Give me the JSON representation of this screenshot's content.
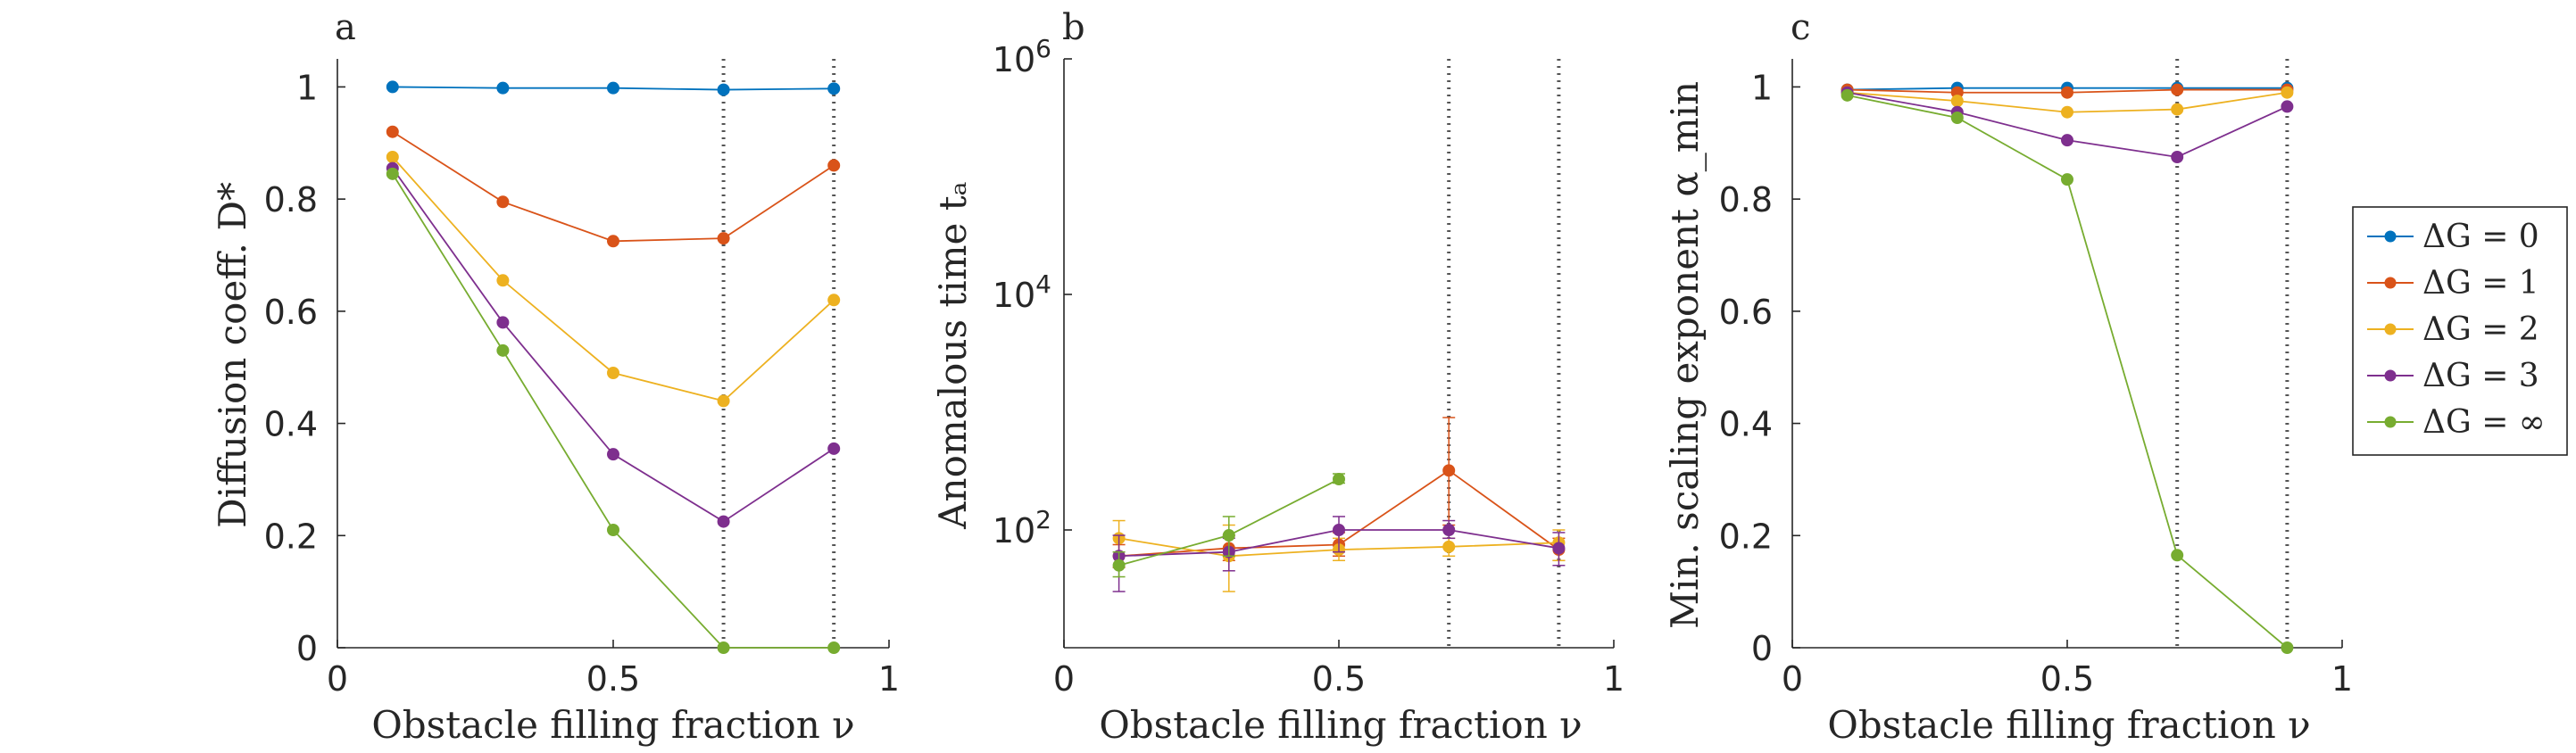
{
  "colors": {
    "dG0": "#0072BD",
    "dG1": "#D95319",
    "dG2": "#EDB120",
    "dG3": "#7E2F8E",
    "dGinf": "#77AC30",
    "axis": "#262626",
    "vline": "#555555"
  },
  "legend": [
    {
      "key": "dG0",
      "label": "ΔG = 0"
    },
    {
      "key": "dG1",
      "label": "ΔG = 1"
    },
    {
      "key": "dG2",
      "label": "ΔG = 2"
    },
    {
      "key": "dG3",
      "label": "ΔG = 3"
    },
    {
      "key": "dGinf",
      "label": "ΔG = ∞"
    }
  ],
  "chart_data": [
    {
      "type": "line",
      "panel": "a",
      "xlabel": "Obstacle filling fraction ν",
      "ylabel": "Diffusion coeff. D*",
      "xlim": [
        0,
        1
      ],
      "ylim": [
        0,
        1.05
      ],
      "xticks": [
        0,
        0.5,
        1
      ],
      "xticklabels": [
        "0",
        "0.5",
        "1"
      ],
      "yscale": "linear",
      "yticks": [
        0,
        0.2,
        0.4,
        0.6,
        0.8,
        1
      ],
      "yticklabels": [
        "0",
        "0.2",
        "0.4",
        "0.6",
        "0.8",
        "1"
      ],
      "vlines": [
        0.7,
        0.9
      ],
      "series": [
        {
          "key": "dG0",
          "name": "ΔG = 0",
          "x": [
            0.1,
            0.3,
            0.5,
            0.7,
            0.9
          ],
          "y": [
            1.0,
            0.998,
            0.998,
            0.995,
            0.997
          ]
        },
        {
          "key": "dG1",
          "name": "ΔG = 1",
          "x": [
            0.1,
            0.3,
            0.5,
            0.7,
            0.9
          ],
          "y": [
            0.92,
            0.795,
            0.725,
            0.73,
            0.86
          ]
        },
        {
          "key": "dG2",
          "name": "ΔG = 2",
          "x": [
            0.1,
            0.3,
            0.5,
            0.7,
            0.9
          ],
          "y": [
            0.875,
            0.655,
            0.49,
            0.44,
            0.62
          ]
        },
        {
          "key": "dG3",
          "name": "ΔG = 3",
          "x": [
            0.1,
            0.3,
            0.5,
            0.7,
            0.9
          ],
          "y": [
            0.855,
            0.58,
            0.345,
            0.225,
            0.355
          ]
        },
        {
          "key": "dGinf",
          "name": "ΔG = ∞",
          "x": [
            0.1,
            0.3,
            0.5,
            0.7,
            0.9
          ],
          "y": [
            0.845,
            0.53,
            0.21,
            0.0,
            0.0
          ]
        }
      ]
    },
    {
      "type": "line",
      "panel": "b",
      "xlabel": "Obstacle filling fraction ν",
      "ylabel": "Anomalous time tₐ",
      "xlim": [
        0,
        1
      ],
      "ylim": [
        10,
        1000000
      ],
      "xticks": [
        0,
        0.5,
        1
      ],
      "xticklabels": [
        "0",
        "0.5",
        "1"
      ],
      "yscale": "log",
      "yticks": [
        100,
        10000,
        1000000
      ],
      "ytick_base": "10",
      "ytick_exps": [
        "2",
        "4",
        "6"
      ],
      "vlines": [
        0.7,
        0.9
      ],
      "series": [
        {
          "key": "dG1",
          "name": "ΔG = 1",
          "x": [
            0.1,
            0.3,
            0.5,
            0.7,
            0.9
          ],
          "y": [
            60,
            70,
            75,
            320,
            68
          ],
          "err": [
            [
              48,
              75
            ],
            [
              55,
              90
            ],
            [
              60,
              95
            ],
            [
              110,
              900
            ],
            [
              55,
              85
            ]
          ]
        },
        {
          "key": "dG2",
          "name": "ΔG = 2",
          "x": [
            0.1,
            0.3,
            0.5,
            0.7,
            0.9
          ],
          "y": [
            85,
            60,
            68,
            72,
            78
          ],
          "err": [
            [
              60,
              120
            ],
            [
              30,
              110
            ],
            [
              55,
              85
            ],
            [
              60,
              85
            ],
            [
              55,
              100
            ]
          ]
        },
        {
          "key": "dG3",
          "name": "ΔG = 3",
          "x": [
            0.1,
            0.3,
            0.5,
            0.7,
            0.9
          ],
          "y": [
            60,
            65,
            100,
            100,
            70
          ],
          "err": [
            [
              30,
              90
            ],
            [
              45,
              85
            ],
            [
              65,
              130
            ],
            [
              85,
              120
            ],
            [
              50,
              95
            ]
          ]
        },
        {
          "key": "dGinf",
          "name": "ΔG = ∞",
          "x": [
            0.1,
            0.3,
            0.5
          ],
          "y": [
            50,
            90,
            270
          ],
          "err": [
            [
              40,
              65
            ],
            [
              60,
              130
            ],
            [
              250,
              300
            ]
          ]
        }
      ]
    },
    {
      "type": "line",
      "panel": "c",
      "xlabel": "Obstacle filling fraction ν",
      "ylabel": "Min. scaling exponent α_min",
      "xlim": [
        0,
        1
      ],
      "ylim": [
        0,
        1.05
      ],
      "xticks": [
        0,
        0.5,
        1
      ],
      "xticklabels": [
        "0",
        "0.5",
        "1"
      ],
      "yscale": "linear",
      "yticks": [
        0,
        0.2,
        0.4,
        0.6,
        0.8,
        1
      ],
      "yticklabels": [
        "0",
        "0.2",
        "0.4",
        "0.6",
        "0.8",
        "1"
      ],
      "vlines": [
        0.7,
        0.9
      ],
      "series": [
        {
          "key": "dG0",
          "name": "ΔG = 0",
          "x": [
            0.1,
            0.3,
            0.5,
            0.7,
            0.9
          ],
          "y": [
            0.995,
            0.998,
            0.998,
            0.998,
            0.998
          ]
        },
        {
          "key": "dG1",
          "name": "ΔG = 1",
          "x": [
            0.1,
            0.3,
            0.5,
            0.7,
            0.9
          ],
          "y": [
            0.995,
            0.99,
            0.99,
            0.995,
            0.995
          ]
        },
        {
          "key": "dG2",
          "name": "ΔG = 2",
          "x": [
            0.1,
            0.3,
            0.5,
            0.7,
            0.9
          ],
          "y": [
            0.99,
            0.975,
            0.955,
            0.96,
            0.99
          ]
        },
        {
          "key": "dG3",
          "name": "ΔG = 3",
          "x": [
            0.1,
            0.3,
            0.5,
            0.7,
            0.9
          ],
          "y": [
            0.99,
            0.955,
            0.905,
            0.875,
            0.965
          ]
        },
        {
          "key": "dGinf",
          "name": "ΔG = ∞",
          "x": [
            0.1,
            0.3,
            0.5,
            0.7,
            0.9
          ],
          "y": [
            0.985,
            0.945,
            0.835,
            0.165,
            0.0
          ]
        }
      ]
    }
  ]
}
